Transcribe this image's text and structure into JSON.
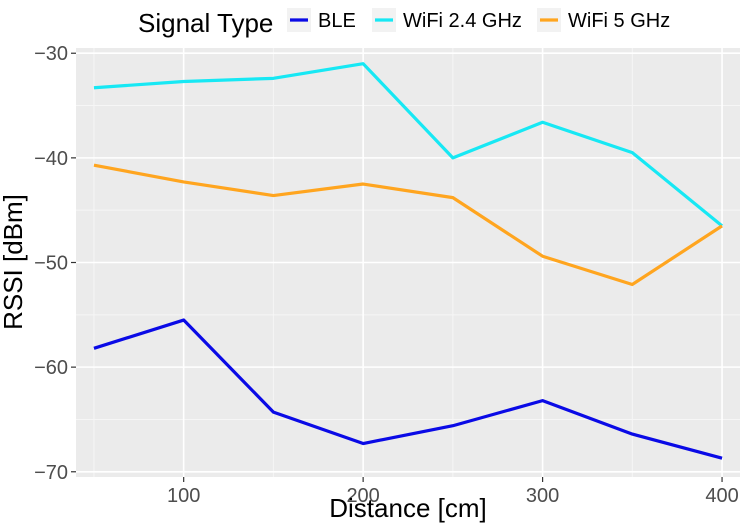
{
  "chart_data": {
    "type": "line",
    "title": "",
    "xlabel": "Distance [cm]",
    "ylabel": "RSSI [dBm]",
    "legend": {
      "title": "Signal Type",
      "position": "top"
    },
    "x": [
      50,
      100,
      150,
      200,
      250,
      300,
      350,
      400
    ],
    "xlim": [
      40,
      410
    ],
    "ylim": [
      -70.5,
      -29.5
    ],
    "x_ticks": [
      100,
      200,
      300,
      400
    ],
    "x_tick_labels": [
      "100",
      "200",
      "300",
      "400"
    ],
    "y_ticks": [
      -70,
      -60,
      -50,
      -40,
      -30
    ],
    "y_tick_labels": [
      "−70",
      "−60",
      "−50",
      "−40",
      "−30"
    ],
    "grid": true,
    "background": "#ebebeb",
    "series": [
      {
        "name": "BLE",
        "color": "#0a0ae6",
        "values": [
          -58.2,
          -55.5,
          -64.3,
          -67.3,
          -65.6,
          -63.2,
          -66.4,
          -68.7
        ]
      },
      {
        "name": "WiFi 2.4 GHz",
        "color": "#17e8f4",
        "values": [
          -33.3,
          -32.7,
          -32.4,
          -31.0,
          -40.0,
          -36.6,
          -39.5,
          -46.5
        ]
      },
      {
        "name": "WiFi 5 GHz",
        "color": "#ffa51f",
        "values": [
          -40.7,
          -42.3,
          -43.6,
          -42.5,
          -43.8,
          -49.4,
          -52.1,
          -46.5
        ]
      }
    ]
  }
}
